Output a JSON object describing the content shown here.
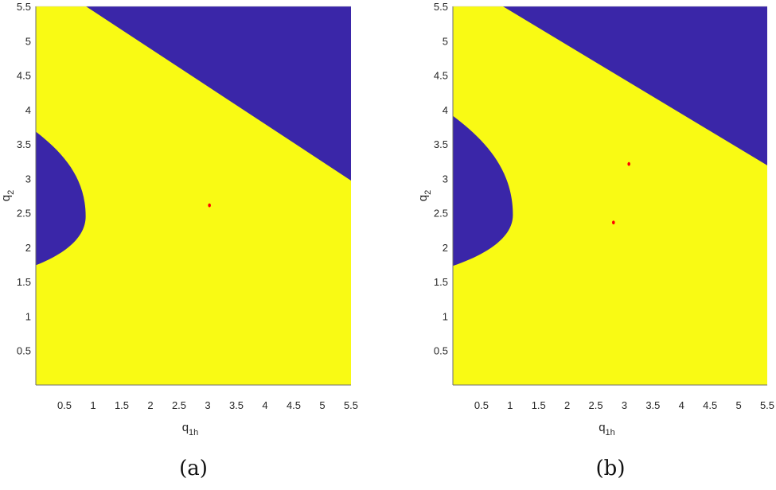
{
  "colors": {
    "region_unstable": "#3a26a8",
    "region_stable": "#f9fa14",
    "point": "#ff0000",
    "axis": "#262626"
  },
  "chart_data": [
    {
      "type": "heatmap",
      "panel_label": "(a)",
      "title": "",
      "xlabel": "q_1h",
      "xlabel_main": "q",
      "xlabel_sub": "1h",
      "ylabel": "q_2",
      "ylabel_main": "q",
      "ylabel_sub": "2",
      "xlim": [
        0,
        5.5
      ],
      "ylim": [
        0,
        5.5
      ],
      "xticks": [
        "0.5",
        "1",
        "1.5",
        "2",
        "2.5",
        "3",
        "3.5",
        "4",
        "4.5",
        "5",
        "5.5"
      ],
      "yticks": [
        "0.5",
        "1",
        "1.5",
        "2",
        "2.5",
        "3",
        "3.5",
        "4",
        "4.5",
        "5",
        "5.5"
      ],
      "grid": false,
      "regions": [
        {
          "name": "upper-right blue region",
          "color": "#3a26a8",
          "boundary_line": {
            "from": [
              0.875,
              5.5
            ],
            "to": [
              5.5,
              2.97
            ]
          }
        },
        {
          "name": "left blue lobe",
          "color": "#3a26a8",
          "boundary": {
            "q2_top": 3.68,
            "q2_bottom": 1.74,
            "tip_q1h": 0.87,
            "tip_q2": 2.45
          }
        },
        {
          "name": "stable yellow region",
          "color": "#f9fa14"
        }
      ],
      "points": [
        {
          "q1h": 3.03,
          "q2": 2.61,
          "color": "#ff0000"
        }
      ]
    },
    {
      "type": "heatmap",
      "panel_label": "(b)",
      "title": "",
      "xlabel": "q_1h",
      "xlabel_main": "q",
      "xlabel_sub": "1h",
      "ylabel": "q_2",
      "ylabel_main": "q",
      "ylabel_sub": "2",
      "xlim": [
        0,
        5.5
      ],
      "ylim": [
        0,
        5.5
      ],
      "xticks": [
        "0.5",
        "1",
        "1.5",
        "2",
        "2.5",
        "3",
        "3.5",
        "4",
        "4.5",
        "5",
        "5.5"
      ],
      "yticks": [
        "0.5",
        "1",
        "1.5",
        "2",
        "2.5",
        "3",
        "3.5",
        "4",
        "4.5",
        "5",
        "5.5"
      ],
      "grid": false,
      "regions": [
        {
          "name": "upper-right blue region",
          "color": "#3a26a8",
          "boundary_line": {
            "from": [
              0.875,
              5.5
            ],
            "to": [
              5.5,
              3.19
            ]
          }
        },
        {
          "name": "left blue lobe",
          "color": "#3a26a8",
          "boundary": {
            "q2_top": 3.91,
            "q2_bottom": 1.73,
            "tip_q1h": 1.05,
            "tip_q2": 2.47
          }
        },
        {
          "name": "stable yellow region",
          "color": "#f9fa14"
        }
      ],
      "points": [
        {
          "q1h": 3.08,
          "q2": 3.21,
          "color": "#ff0000"
        },
        {
          "q1h": 2.81,
          "q2": 2.36,
          "color": "#ff0000"
        }
      ]
    }
  ]
}
